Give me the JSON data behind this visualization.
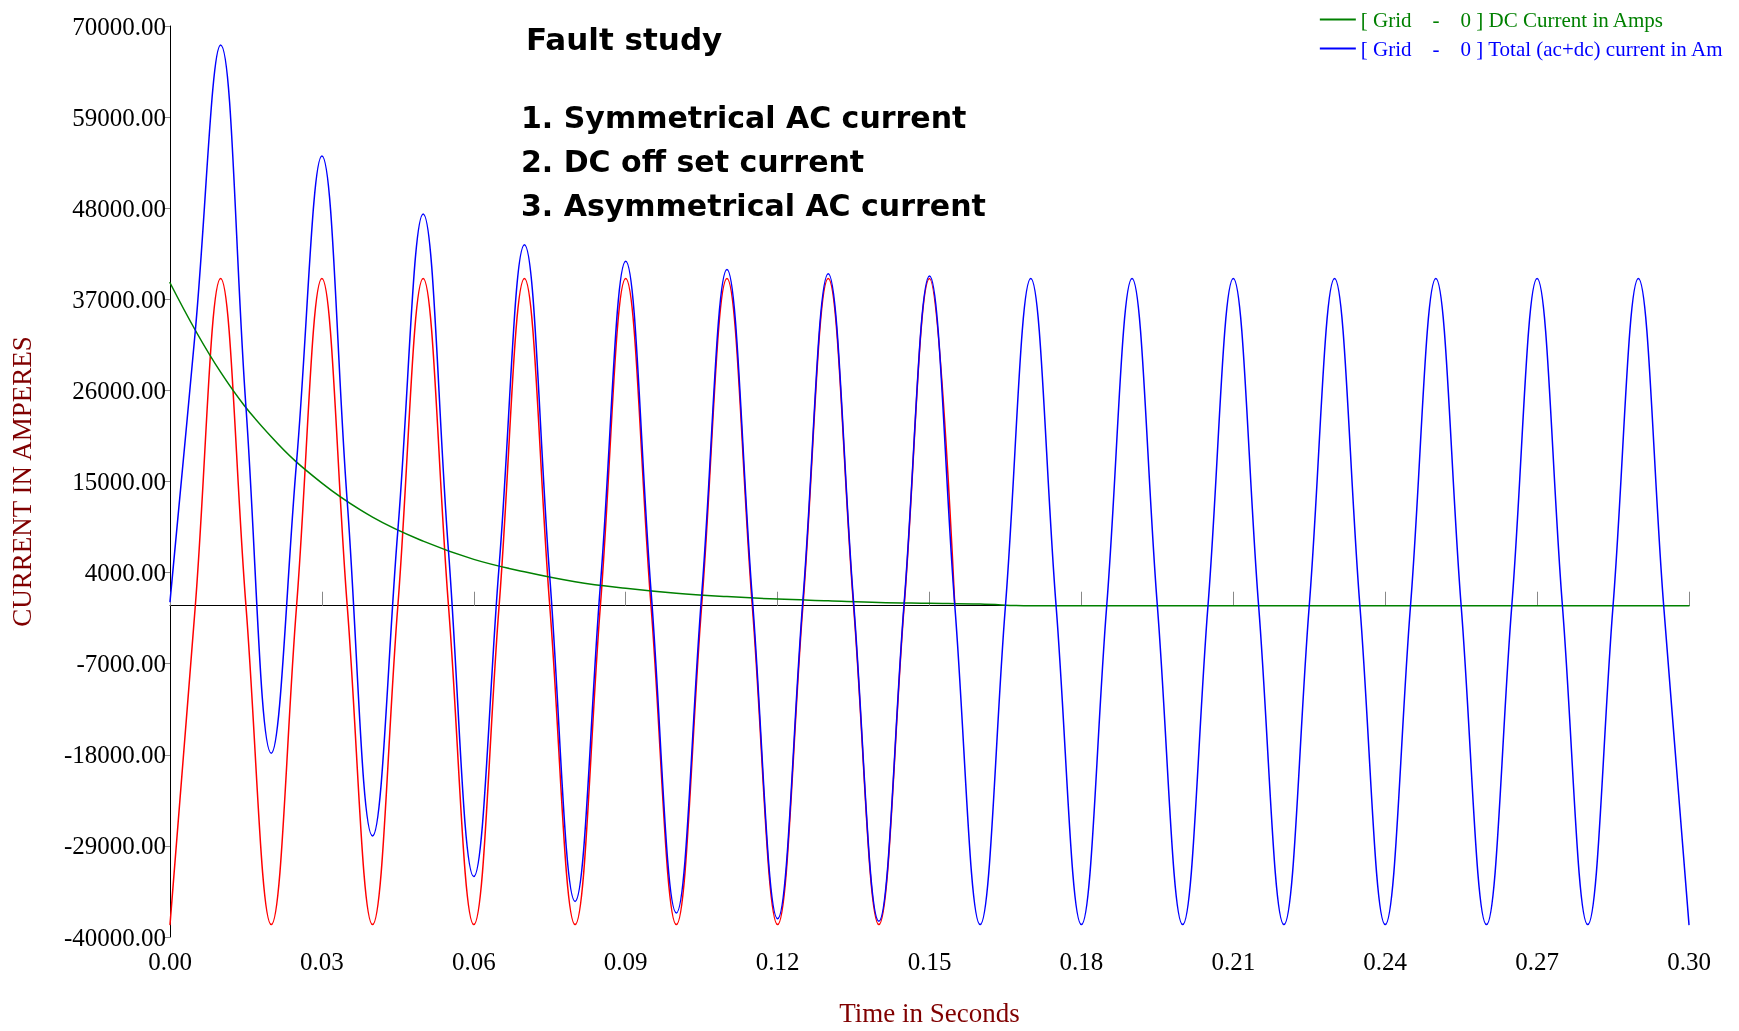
{
  "chart_data": {
    "type": "line",
    "title": "Fault study",
    "xlabel": "Time in Seconds",
    "ylabel": "CURRENT IN AMPERES",
    "annotations": [
      "1. Symmetrical AC current",
      "2. DC off set current",
      "3. Asymmetrical AC current"
    ],
    "x": [
      0,
      0.005,
      0.01,
      0.015,
      0.02,
      0.025,
      0.03,
      0.035,
      0.04,
      0.045,
      0.05,
      0.055,
      0.06,
      0.065,
      0.07,
      0.075,
      0.08,
      0.085,
      0.09,
      0.095,
      0.1,
      0.105,
      0.11,
      0.115,
      0.12,
      0.125,
      0.13,
      0.135,
      0.14,
      0.145,
      0.15,
      0.155,
      0.16,
      0.165,
      0.17,
      0.175,
      0.18,
      0.185,
      0.19,
      0.195,
      0.2,
      0.205,
      0.21,
      0.215,
      0.22,
      0.225,
      0.23,
      0.235,
      0.24,
      0.245,
      0.25,
      0.255,
      0.26,
      0.265,
      0.27,
      0.275,
      0.28,
      0.285,
      0.29,
      0.295,
      0.3
    ],
    "series": [
      {
        "color": "#ff0000",
        "values": [
          -38500,
          0,
          39500,
          0,
          -38500,
          0,
          39500,
          0,
          -38500,
          0,
          39500,
          0,
          -38500,
          0,
          39500,
          0,
          -38500,
          0,
          39500,
          0,
          -38500,
          0,
          39500,
          0,
          -38500,
          0,
          39500,
          0,
          -38500,
          0,
          39500,
          0,
          null,
          null,
          null,
          null,
          null,
          null,
          null,
          null,
          null,
          null,
          null,
          null,
          null,
          null,
          null,
          null,
          null,
          null,
          null,
          null,
          null,
          null,
          null,
          null,
          null,
          null,
          null,
          null,
          null
        ]
      },
      {
        "name": "[ Grid    -    0 ] DC Current in Amps",
        "color": "#008000",
        "x": [
          0,
          0.01,
          0.02,
          0.03,
          0.04,
          0.05,
          0.06,
          0.07,
          0.08,
          0.09,
          0.1,
          0.11,
          0.12,
          0.13,
          0.14,
          0.15,
          0.16,
          0.17,
          0.3
        ],
        "values": [
          39000,
          28200,
          20400,
          14800,
          10700,
          7800,
          5600,
          4100,
          2900,
          2100,
          1500,
          1100,
          800,
          600,
          400,
          300,
          200,
          0,
          0
        ]
      },
      {
        "name": "[ Grid    -    0 ] Total (ac+dc) current in Am",
        "color": "#0000ff",
        "values": [
          500,
          33200,
          67700,
          24000,
          -17800,
          17400,
          54300,
          12600,
          -27800,
          9100,
          47300,
          6600,
          -32700,
          4800,
          43600,
          3500,
          -35700,
          2500,
          41600,
          1800,
          -37100,
          1300,
          40600,
          1000,
          -37800,
          700,
          40100,
          500,
          -38100,
          400,
          39800,
          0,
          -38500,
          0,
          39500,
          0,
          -38500,
          0,
          39500,
          0,
          -38500,
          0,
          39500,
          0,
          -38500,
          0,
          39500,
          0,
          -38500,
          0,
          39500,
          0,
          -38500,
          0,
          39500,
          0,
          -38500,
          0,
          39500,
          0,
          -38500
        ]
      }
    ],
    "xlim": [
      0,
      0.3
    ],
    "xticks": [
      {
        "value": 0,
        "label": "0.00"
      },
      {
        "value": 0.03,
        "label": "0.03"
      },
      {
        "value": 0.06,
        "label": "0.06"
      },
      {
        "value": 0.09,
        "label": "0.09"
      },
      {
        "value": 0.12,
        "label": "0.12"
      },
      {
        "value": 0.15,
        "label": "0.15"
      },
      {
        "value": 0.18,
        "label": "0.18"
      },
      {
        "value": 0.21,
        "label": "0.21"
      },
      {
        "value": 0.24,
        "label": "0.24"
      },
      {
        "value": 0.27,
        "label": "0.27"
      },
      {
        "value": 0.3,
        "label": "0.30"
      }
    ],
    "ylim": [
      -40000,
      70000
    ],
    "yticks": [
      {
        "value": -40000,
        "label": "-40000.00"
      },
      {
        "value": -29000,
        "label": "-29000.00"
      },
      {
        "value": -18000,
        "label": "-18000.00"
      },
      {
        "value": -7000,
        "label": "-7000.00"
      },
      {
        "value": 4000,
        "label": "4000.00"
      },
      {
        "value": 15000,
        "label": "15000.00"
      },
      {
        "value": 26000,
        "label": "26000.00"
      },
      {
        "value": 37000,
        "label": "37000.00"
      },
      {
        "value": 48000,
        "label": "48000.00"
      },
      {
        "value": 59000,
        "label": "59000.00"
      },
      {
        "value": 70000,
        "label": "70000.00"
      }
    ],
    "grid": false,
    "legend": "top right",
    "marker": "none",
    "line_style": "solid"
  }
}
